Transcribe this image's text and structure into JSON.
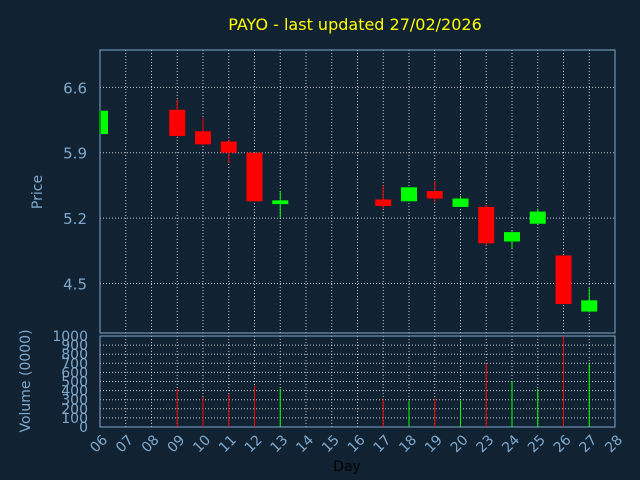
{
  "chart_data": {
    "type": "candlestick",
    "title": "PAYO - last updated 27/02/2026",
    "xlabel": "Day",
    "ylabel_price": "Price",
    "ylabel_volume": "Volume (0000)",
    "x_ticks": [
      "06",
      "07",
      "08",
      "09",
      "10",
      "11",
      "12",
      "13",
      "14",
      "15",
      "16",
      "17",
      "18",
      "19",
      "20",
      "23",
      "24",
      "25",
      "26",
      "27",
      "28"
    ],
    "price_axis": {
      "ylim": [
        3.97,
        7.0
      ],
      "ticks": [
        "4.5",
        "5.2",
        "5.9",
        "6.6"
      ],
      "tick_values": [
        4.5,
        5.2,
        5.9,
        6.6
      ]
    },
    "volume_axis": {
      "ylim": [
        0,
        1000
      ],
      "ticks": [
        "0",
        "100",
        "200",
        "300",
        "400",
        "500",
        "600",
        "700",
        "800",
        "900",
        "1000"
      ],
      "tick_values": [
        0,
        100,
        200,
        300,
        400,
        500,
        600,
        700,
        800,
        900,
        1000
      ]
    },
    "grid": true,
    "colors": {
      "up": "#00ff00",
      "down": "#ff0000",
      "title": "#ffff00",
      "axis_text": "#7fa8cc",
      "background": "#112233",
      "frame": "#7fa8cc",
      "grid": "#ffffff"
    },
    "candles": [
      {
        "day": "06",
        "open": 6.1,
        "close": 6.35,
        "high": 6.35,
        "low": 6.1,
        "volume": 0
      },
      {
        "day": "09",
        "open": 6.36,
        "close": 6.08,
        "high": 6.47,
        "low": 6.07,
        "volume": 420
      },
      {
        "day": "10",
        "open": 6.13,
        "close": 5.99,
        "high": 6.27,
        "low": 5.98,
        "volume": 330
      },
      {
        "day": "11",
        "open": 6.02,
        "close": 5.9,
        "high": 6.04,
        "low": 5.79,
        "volume": 360
      },
      {
        "day": "12",
        "open": 5.9,
        "close": 5.38,
        "high": 5.9,
        "low": 5.38,
        "volume": 450
      },
      {
        "day": "13",
        "open": 5.35,
        "close": 5.39,
        "high": 5.49,
        "low": 5.2,
        "volume": 420
      },
      {
        "day": "17",
        "open": 5.4,
        "close": 5.33,
        "high": 5.55,
        "low": 5.3,
        "volume": 310
      },
      {
        "day": "18",
        "open": 5.38,
        "close": 5.53,
        "high": 5.53,
        "low": 5.38,
        "volume": 290
      },
      {
        "day": "19",
        "open": 5.49,
        "close": 5.41,
        "high": 5.6,
        "low": 5.37,
        "volume": 310
      },
      {
        "day": "20",
        "open": 5.32,
        "close": 5.41,
        "high": 5.44,
        "low": 5.32,
        "volume": 290
      },
      {
        "day": "23",
        "open": 5.32,
        "close": 4.93,
        "high": 5.34,
        "low": 4.91,
        "volume": 700
      },
      {
        "day": "24",
        "open": 4.95,
        "close": 5.05,
        "high": 5.06,
        "low": 4.88,
        "volume": 500
      },
      {
        "day": "25",
        "open": 5.14,
        "close": 5.27,
        "high": 5.3,
        "low": 5.14,
        "volume": 420
      },
      {
        "day": "26",
        "open": 4.8,
        "close": 4.28,
        "high": 4.8,
        "low": 4.28,
        "volume": 1000
      },
      {
        "day": "27",
        "open": 4.2,
        "close": 4.32,
        "high": 4.45,
        "low": 4.19,
        "volume": 700
      }
    ]
  }
}
